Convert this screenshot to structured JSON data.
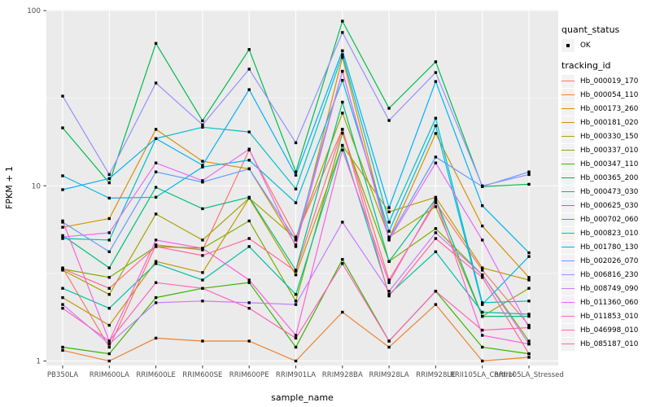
{
  "chart_data": {
    "type": "line",
    "title": "",
    "xlabel": "sample_name",
    "ylabel": "FPKM + 1",
    "y_scale": "log10",
    "y_ticks": [
      "1",
      "10",
      "100"
    ],
    "ylim": [
      0.95,
      105
    ],
    "grid": true,
    "panel_bg": "#EBEBEB",
    "grid_color": "#FFFFFF",
    "point_color": "#000000",
    "legend_position": "right",
    "categories": [
      "PB350LA",
      "RRIM600LA",
      "RRIM600LE",
      "RRIM600SE",
      "RRIM600PE",
      "RRIM901LA",
      "RRIM928BA",
      "RRIM928LA",
      "RRIM928LE",
      "RRII105LA_Control",
      "RRII105LA_Stressed"
    ],
    "series": [
      {
        "tracking_id": "Hb_000019_170",
        "color": "#F8766D",
        "values": [
          3.4,
          1.2,
          4.6,
          4.3,
          16,
          5.1,
          21,
          2.9,
          8,
          3.3,
          1.6
        ]
      },
      {
        "tracking_id": "Hb_000054_110",
        "color": "#EA8331",
        "values": [
          1.15,
          1.0,
          1.35,
          1.3,
          1.3,
          1.0,
          1.9,
          1.2,
          2.1,
          1.0,
          1.05
        ]
      },
      {
        "tracking_id": "Hb_000173_260",
        "color": "#D89000",
        "values": [
          5.8,
          6.5,
          21,
          13.8,
          12.5,
          4.6,
          54,
          5.0,
          19.9,
          5.9,
          3.0
        ]
      },
      {
        "tracking_id": "Hb_000181_020",
        "color": "#C09B00",
        "values": [
          2.3,
          1.6,
          3.7,
          3.2,
          8.5,
          3.1,
          17,
          7.1,
          8.6,
          3.4,
          2.9
        ]
      },
      {
        "tracking_id": "Hb_000330_150",
        "color": "#A3A500",
        "values": [
          3.3,
          2.4,
          6.9,
          4.9,
          8.5,
          5.0,
          26,
          5.1,
          7.6,
          1.8,
          2.6
        ]
      },
      {
        "tracking_id": "Hb_000337_010",
        "color": "#7CAE00",
        "values": [
          3.35,
          3.0,
          4.5,
          4.4,
          6.3,
          2.2,
          20,
          3.7,
          5.7,
          3.1,
          1.3
        ]
      },
      {
        "tracking_id": "Hb_000347_110",
        "color": "#39B600",
        "values": [
          1.2,
          1.1,
          2.3,
          2.6,
          2.8,
          1.2,
          3.8,
          1.3,
          2.5,
          1.2,
          1.1
        ]
      },
      {
        "tracking_id": "Hb_000365_200",
        "color": "#00BB4E",
        "values": [
          21.4,
          10.4,
          65,
          23.5,
          60,
          12,
          87,
          27.7,
          51,
          9.9,
          10.2
        ]
      },
      {
        "tracking_id": "Hb_000473_030",
        "color": "#00BF7D",
        "values": [
          5.2,
          3.4,
          9.8,
          7.4,
          8.6,
          3.3,
          30,
          3.7,
          8.4,
          1.8,
          1.8
        ]
      },
      {
        "tracking_id": "Hb_000625_030",
        "color": "#00C1A3",
        "values": [
          2.6,
          2.0,
          3.6,
          2.9,
          4.5,
          2.4,
          17,
          2.4,
          4.2,
          1.9,
          1.85
        ]
      },
      {
        "tracking_id": "Hb_000702_060",
        "color": "#00BFC4",
        "values": [
          5.0,
          4.9,
          18.6,
          21.6,
          20.3,
          9.6,
          56,
          6.2,
          24.3,
          2.15,
          2.2
        ]
      },
      {
        "tracking_id": "Hb_000823_010",
        "color": "#00BAE0",
        "values": [
          11.4,
          8.5,
          8.6,
          12.8,
          14,
          8.0,
          40,
          5.5,
          22,
          2.1,
          3.95
        ]
      },
      {
        "tracking_id": "Hb_001780_130",
        "color": "#00B0F6",
        "values": [
          9.5,
          11,
          18.6,
          13.1,
          35.4,
          11.5,
          59,
          7.5,
          39.4,
          7.7,
          4.15
        ]
      },
      {
        "tracking_id": "Hb_002026_070",
        "color": "#619CFF",
        "values": [
          6.2,
          4.2,
          12,
          10.5,
          12.5,
          4.9,
          45,
          5.0,
          14.6,
          9.9,
          12
        ]
      },
      {
        "tracking_id": "Hb_006816_230",
        "color": "#9590FF",
        "values": [
          32.5,
          11.6,
          38.6,
          22.3,
          46.3,
          17.6,
          75,
          23.6,
          44.3,
          10,
          11.6
        ]
      },
      {
        "tracking_id": "Hb_008749_090",
        "color": "#C77CFF",
        "values": [
          2.1,
          1.25,
          2.15,
          2.2,
          2.15,
          2.1,
          6.2,
          2.5,
          5.4,
          3.1,
          1.25
        ]
      },
      {
        "tracking_id": "Hb_011360_060",
        "color": "#E76BF3",
        "values": [
          5.1,
          5.4,
          13.5,
          10.7,
          16.2,
          4.5,
          45,
          4.9,
          13.5,
          4.9,
          1.55
        ]
      },
      {
        "tracking_id": "Hb_011853_010",
        "color": "#FA62DB",
        "values": [
          6.3,
          1.3,
          4.9,
          4.4,
          2.9,
          1.4,
          16,
          2.8,
          8.3,
          1.4,
          1.25
        ]
      },
      {
        "tracking_id": "Hb_046998_010",
        "color": "#FF62BC",
        "values": [
          2.0,
          1.3,
          2.8,
          2.6,
          2.0,
          1.35,
          3.6,
          1.3,
          2.5,
          1.5,
          1.55
        ]
      },
      {
        "tracking_id": "Hb_085187_010",
        "color": "#FF6A98",
        "values": [
          3.36,
          2.6,
          4.5,
          4.0,
          5.0,
          3.25,
          21,
          2.35,
          5.0,
          3.0,
          1.1
        ]
      }
    ]
  },
  "legend": {
    "quant_status": {
      "title": "quant_status",
      "items": [
        {
          "label": "OK",
          "symbol": "black-point"
        }
      ]
    },
    "tracking": {
      "title": "tracking_id"
    }
  }
}
